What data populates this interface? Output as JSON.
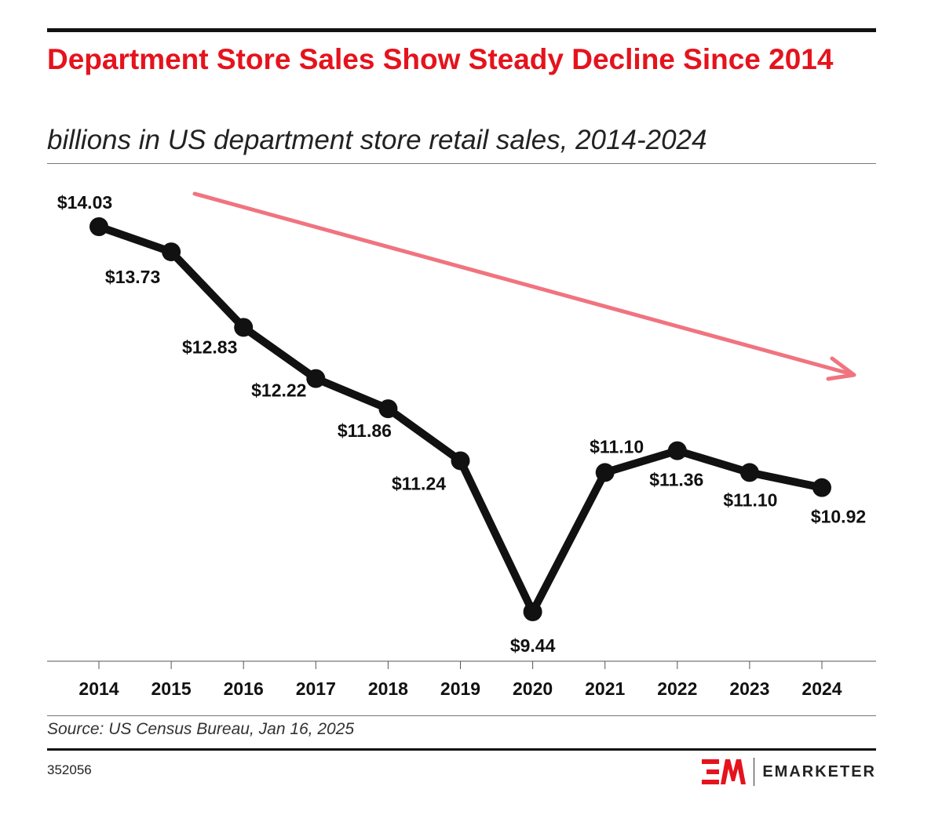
{
  "header": {
    "title": "Department Store Sales Show Steady Decline Since 2014",
    "subtitle": "billions in US department store retail sales, 2014-2024"
  },
  "chart_data": {
    "type": "line",
    "title": "Department Store Sales Show Steady Decline Since 2014",
    "subtitle": "billions in US department store retail sales, 2014-2024",
    "x": [
      "2014",
      "2015",
      "2016",
      "2017",
      "2018",
      "2019",
      "2020",
      "2021",
      "2022",
      "2023",
      "2024"
    ],
    "series": [
      {
        "values": [
          14.03,
          13.73,
          12.83,
          12.22,
          11.86,
          11.24,
          9.44,
          11.1,
          11.36,
          11.1,
          10.92
        ],
        "labels": [
          "$14.03",
          "$13.73",
          "$12.83",
          "$12.22",
          "$11.86",
          "$11.24",
          "$9.44",
          "$11.10",
          "$11.36",
          "$11.10",
          "$10.92"
        ],
        "color": "#111111"
      }
    ],
    "annotation": {
      "type": "trend-arrow",
      "direction": "down",
      "color": "#f0747f"
    },
    "grid": false
  },
  "footer": {
    "source": "Source: US Census Bureau, Jan 16, 2025",
    "chart_id": "352056",
    "brand": "EMARKETER",
    "brand_color": "#e5131d"
  }
}
